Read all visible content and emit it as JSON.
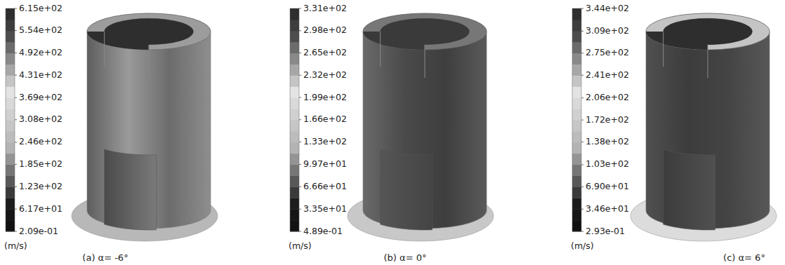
{
  "chart_data": [
    {
      "type": "contour",
      "title": "(a) α= -6°",
      "colorbar": {
        "label": "(m/s)",
        "range": [
          0.209,
          615
        ],
        "ticks": [
          {
            "value": 615,
            "label": "6.15e+02"
          },
          {
            "value": 554,
            "label": "5.54e+02"
          },
          {
            "value": 492,
            "label": "4.92e+02"
          },
          {
            "value": 431,
            "label": "4.31e+02"
          },
          {
            "value": 369,
            "label": "3.69e+02"
          },
          {
            "value": 308,
            "label": "3.08e+02"
          },
          {
            "value": 246,
            "label": "2.46e+02"
          },
          {
            "value": 185,
            "label": "1.85e+02"
          },
          {
            "value": 123,
            "label": "1.23e+02"
          },
          {
            "value": 61.7,
            "label": "6.17e+01"
          },
          {
            "value": 0.209,
            "label": "2.09e-01"
          }
        ]
      }
    },
    {
      "type": "contour",
      "title": "(b) α= 0°",
      "colorbar": {
        "label": "(m/s)",
        "range": [
          0.489,
          331
        ],
        "ticks": [
          {
            "value": 331,
            "label": "3.31e+02"
          },
          {
            "value": 298,
            "label": "2.98e+02"
          },
          {
            "value": 265,
            "label": "2.65e+02"
          },
          {
            "value": 232,
            "label": "2.32e+02"
          },
          {
            "value": 199,
            "label": "1.99e+02"
          },
          {
            "value": 166,
            "label": "1.66e+02"
          },
          {
            "value": 133,
            "label": "1.33e+02"
          },
          {
            "value": 99.7,
            "label": "9.97e+01"
          },
          {
            "value": 66.6,
            "label": "6.66e+01"
          },
          {
            "value": 33.5,
            "label": "3.35e+01"
          },
          {
            "value": 0.489,
            "label": "4.89e-01"
          }
        ]
      }
    },
    {
      "type": "contour",
      "title": "(c) α= 6°",
      "colorbar": {
        "label": "(m/s)",
        "range": [
          0.293,
          344
        ],
        "ticks": [
          {
            "value": 344,
            "label": "3.44e+02"
          },
          {
            "value": 309,
            "label": "3.09e+02"
          },
          {
            "value": 275,
            "label": "2.75e+02"
          },
          {
            "value": 241,
            "label": "2.41e+02"
          },
          {
            "value": 206,
            "label": "2.06e+02"
          },
          {
            "value": 172,
            "label": "1.72e+02"
          },
          {
            "value": 138,
            "label": "1.38e+02"
          },
          {
            "value": 103,
            "label": "1.03e+02"
          },
          {
            "value": 69.0,
            "label": "6.90e+01"
          },
          {
            "value": 34.6,
            "label": "3.46e+01"
          },
          {
            "value": 0.293,
            "label": "2.93e-01"
          }
        ]
      }
    }
  ]
}
